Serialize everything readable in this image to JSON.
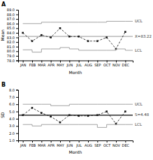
{
  "chart_data": [
    {
      "type": "line",
      "title": "A",
      "categories": [
        "JAN",
        "FEB",
        "MAR",
        "APR",
        "MAY",
        "JUN",
        "JUL",
        "AUG",
        "SEP",
        "OCT",
        "NOV",
        "DEC"
      ],
      "xlabel": "Month",
      "ylabel": "Mean",
      "series": [
        {
          "values": [
            84.0,
            82.2,
            83.5,
            83.0,
            85.0,
            83.2,
            83.2,
            82.2,
            82.2,
            83.0,
            80.5,
            84.2
          ],
          "color": "#111111",
          "line_style": "dashed",
          "marker": "square"
        },
        {
          "name": "UCL",
          "type": "step",
          "values": [
            86.0,
            86.0,
            86.3,
            86.3,
            86.3,
            86.3,
            86.3,
            86.3,
            86.3,
            86.5,
            86.5,
            86.5
          ],
          "color": "#999999"
        },
        {
          "name": "LCL",
          "type": "step",
          "values": [
            80.3,
            79.8,
            80.5,
            80.5,
            80.8,
            80.5,
            80.2,
            80.2,
            80.2,
            80.2,
            80.5,
            80.2
          ],
          "color": "#999999"
        }
      ],
      "center_line": {
        "value": 83.22,
        "label": "X=83.22",
        "color": "#aaaaaa"
      },
      "ylim": [
        78.0,
        89.0
      ],
      "yticks": [
        {
          "value": 78,
          "label": "78.0"
        },
        {
          "value": 79,
          "label": "79.0"
        },
        {
          "value": 80,
          "label": "80.0"
        },
        {
          "value": 81,
          "label": "81.0"
        },
        {
          "value": 82,
          "label": "82.0"
        },
        {
          "value": 83,
          "label": "83.0"
        },
        {
          "value": 84,
          "label": "84.0"
        },
        {
          "value": 85,
          "label": "85.0"
        },
        {
          "value": 86,
          "label": "86.0"
        },
        {
          "value": 87,
          "label": "87.0"
        },
        {
          "value": 88,
          "label": "88.0"
        },
        {
          "value": 89,
          "label": "89.0"
        }
      ]
    },
    {
      "type": "line",
      "title": "B",
      "categories": [
        "JAN",
        "FEB",
        "MAR",
        "APR",
        "MAY",
        "JUN",
        "JUL",
        "AUG",
        "SEP",
        "OCT",
        "NOV",
        "DEC"
      ],
      "xlabel": "Month",
      "ylabel": "SD",
      "series": [
        {
          "values": [
            4.5,
            5.5,
            4.8,
            4.3,
            3.5,
            4.5,
            4.4,
            4.4,
            4.5,
            5.0,
            3.3,
            5.0
          ],
          "color": "#111111",
          "line_style": "dashed",
          "marker": "square"
        },
        {
          "name": "UCL",
          "type": "step",
          "values": [
            6.0,
            6.0,
            6.0,
            5.8,
            5.8,
            6.0,
            6.0,
            6.0,
            6.0,
            6.0,
            6.0,
            6.0
          ],
          "color": "#999999"
        },
        {
          "name": "LCL",
          "type": "step",
          "values": [
            3.2,
            3.0,
            3.2,
            3.2,
            3.2,
            3.2,
            3.2,
            3.2,
            2.8,
            3.2,
            3.2,
            3.2
          ],
          "color": "#999999"
        }
      ],
      "center_line": {
        "value": 4.48,
        "label": "S=4.48",
        "color": "#000000"
      },
      "ylim": [
        1.0,
        8.0
      ],
      "yticks": [
        {
          "value": 1,
          "label": "1.0"
        },
        {
          "value": 2,
          "label": "2.0"
        },
        {
          "value": 3,
          "label": "3.0"
        },
        {
          "value": 4,
          "label": "4.0"
        },
        {
          "value": 5,
          "label": "5.0"
        },
        {
          "value": 6,
          "label": "6.0"
        },
        {
          "value": 7,
          "label": "7.0"
        },
        {
          "value": 8,
          "label": "8.0"
        }
      ]
    }
  ]
}
